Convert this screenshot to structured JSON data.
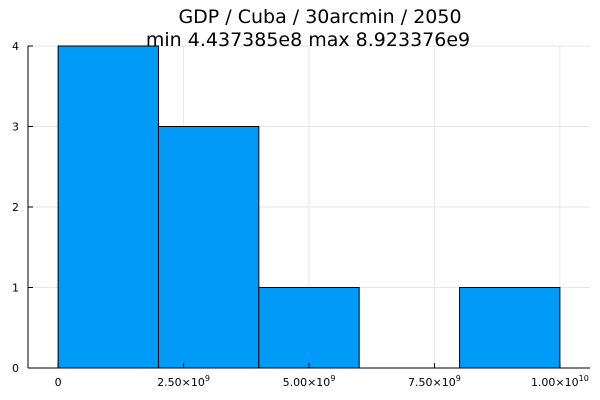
{
  "chart_data": {
    "type": "bar",
    "title_line1": "GDP / Cuba / 30arcmin / 2050",
    "title_line2": "min 4.437385e8  max 8.923376e9",
    "bin_edges": [
      0,
      2000000000,
      4000000000,
      6000000000,
      8000000000,
      10000000000
    ],
    "counts": [
      4,
      3,
      1,
      0,
      1
    ],
    "xlim": [
      -600000000,
      10600000000
    ],
    "ylim": [
      0,
      4
    ],
    "y_ticks": [
      0,
      1,
      2,
      3,
      4
    ],
    "y_tick_labels": [
      "0",
      "1",
      "2",
      "3",
      "4"
    ],
    "x_ticks": [
      0,
      2500000000,
      5000000000,
      7500000000,
      10000000000
    ],
    "x_tick_labels": [
      {
        "base": "0",
        "exp": ""
      },
      {
        "base": "2.50×10",
        "exp": "9"
      },
      {
        "base": "5.00×10",
        "exp": "9"
      },
      {
        "base": "7.50×10",
        "exp": "9"
      },
      {
        "base": "1.00×10",
        "exp": "10"
      }
    ],
    "bar_color": "#009af9",
    "grid": true,
    "legend": false
  }
}
